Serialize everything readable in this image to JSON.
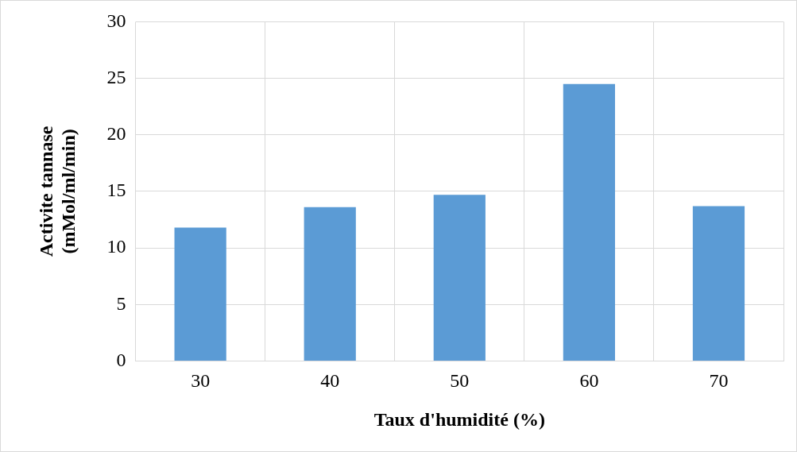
{
  "chart_data": {
    "type": "bar",
    "xlabel": "Taux d'humidité (%)",
    "ylabel": "Activite tannase\n(mMol/ml/min)",
    "categories": [
      "30",
      "40",
      "50",
      "60",
      "70"
    ],
    "values": [
      11.8,
      13.6,
      14.7,
      24.5,
      13.7
    ],
    "color": "#5b9bd5",
    "ylim": [
      0,
      30
    ],
    "yticks": [
      0,
      5,
      10,
      15,
      20,
      25,
      30
    ],
    "grid": true,
    "legend": false
  }
}
